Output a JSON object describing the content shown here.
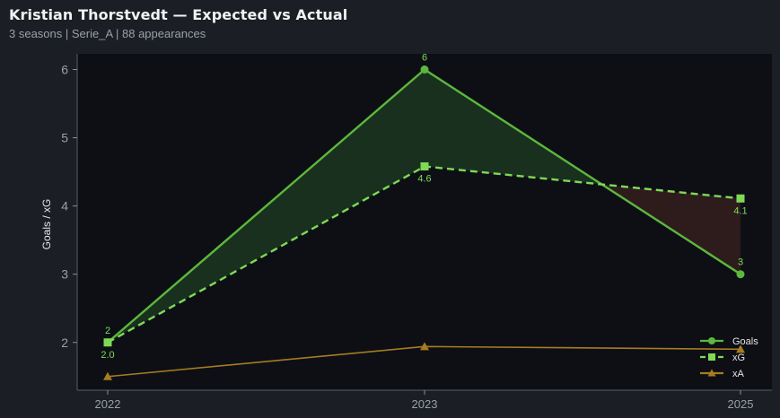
{
  "header": {
    "title": "Kristian Thorstvedt — Expected vs Actual",
    "subtitle": "3 seasons | Serie_A | 88 appearances"
  },
  "chart_data": {
    "type": "line",
    "x": [
      "2022",
      "2023",
      "2025"
    ],
    "series": [
      {
        "name": "Goals",
        "values": [
          2,
          6,
          3
        ],
        "labels": [
          "2",
          "6",
          "3"
        ],
        "color": "#5cb83c",
        "marker": "circle",
        "style": "solid"
      },
      {
        "name": "xG",
        "values": [
          2.0,
          4.58,
          4.11
        ],
        "labels": [
          "2.0",
          "4.6",
          "4.1"
        ],
        "color": "#7ed957",
        "marker": "square",
        "style": "dashed"
      },
      {
        "name": "xA",
        "values": [
          1.5,
          1.94,
          1.9
        ],
        "color": "#a67c1f",
        "marker": "triangle",
        "style": "solid"
      }
    ],
    "ylabel": "Goals / xG",
    "xlabel": "",
    "yticks": [
      "2",
      "3",
      "4",
      "5",
      "6"
    ],
    "ylim": [
      1.3,
      6.23
    ],
    "fill_over_color": "#1b3320",
    "fill_under_color": "#301d1e",
    "legend_position": "lower-right",
    "grid": false
  }
}
